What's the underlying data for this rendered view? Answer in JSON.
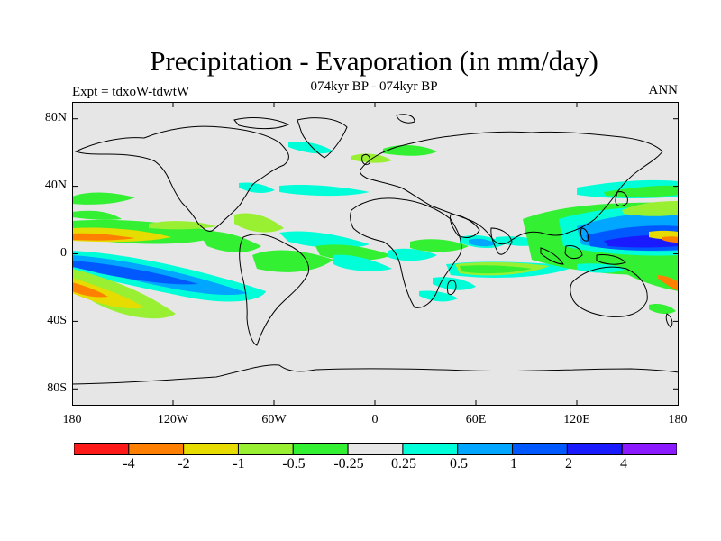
{
  "title": "Precipitation - Evaporation (in mm/day)",
  "subtitle": "074kyr BP - 074kyr BP",
  "experiment": "Expt = tdxoW-tdwtW",
  "season": "ANN",
  "colors": {
    "background": "#e6e6e6",
    "coastline": "#000000",
    "palette": [
      "#ff1a1a",
      "#ff8000",
      "#e6dc00",
      "#99f033",
      "#33f033",
      "#e6e6e6",
      "#00ffd9",
      "#00a6ff",
      "#0059ff",
      "#1a1aff",
      "#8c1aff"
    ]
  },
  "axes": {
    "lat_labels": [
      "80N",
      "40N",
      "0",
      "40S",
      "80S"
    ],
    "lon_labels": [
      "180",
      "120W",
      "60W",
      "0",
      "60E",
      "120E",
      "180"
    ]
  },
  "colorbar": {
    "labels": [
      "-4",
      "-2",
      "-1",
      "-0.5",
      "-0.25",
      "0.25",
      "0.5",
      "1",
      "2",
      "4"
    ]
  }
}
